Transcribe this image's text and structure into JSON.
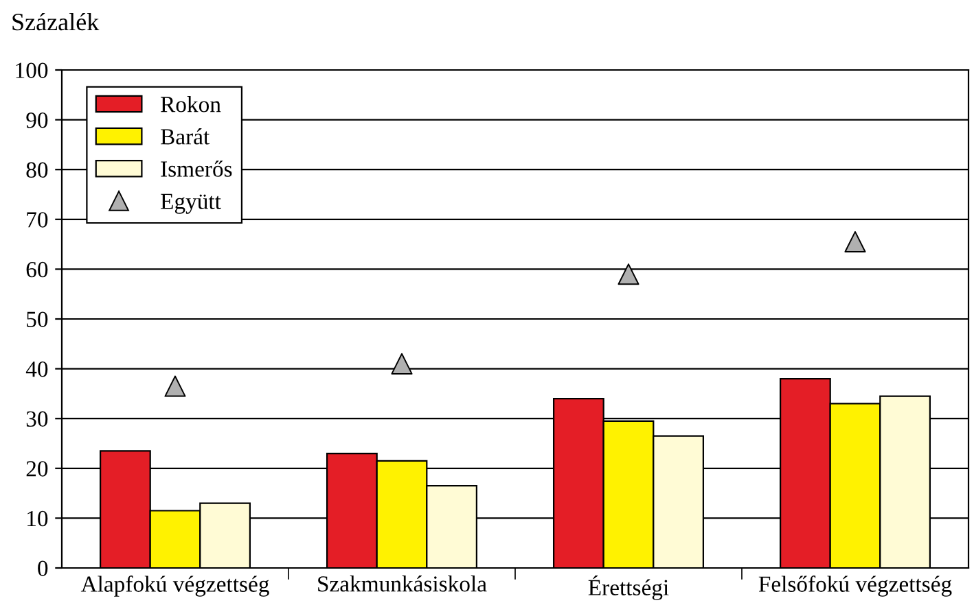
{
  "chart_data": {
    "type": "bar",
    "ylabel": "Százalék",
    "categories": [
      "Alapfokú végzettség",
      "Szakmunkásiskola",
      "Érettségi",
      "Felsőfokú végzettség"
    ],
    "series": [
      {
        "name": "Rokon",
        "color": "#e41e26",
        "values": [
          23.5,
          23,
          34,
          38
        ]
      },
      {
        "name": "Barát",
        "color": "#fff200",
        "values": [
          11.5,
          21.5,
          29.5,
          33
        ]
      },
      {
        "name": "Ismerős",
        "color": "#fffbd5",
        "values": [
          13,
          16.5,
          26.5,
          34.5
        ]
      },
      {
        "name": "Együtt",
        "type": "scatter",
        "marker": "triangle",
        "color": "#b0b0b0",
        "x": [
          "Alapfokú végzettség",
          "Szakmunkásiskola",
          "Érettségi",
          "Felsőfokú végzettség"
        ],
        "values": [
          36.5,
          41,
          59,
          65.5
        ]
      }
    ],
    "ylim": [
      0,
      100
    ],
    "yticks": [
      0,
      10,
      20,
      30,
      40,
      50,
      60,
      70,
      80,
      90,
      100
    ],
    "grid": "y",
    "legend": "top left"
  }
}
